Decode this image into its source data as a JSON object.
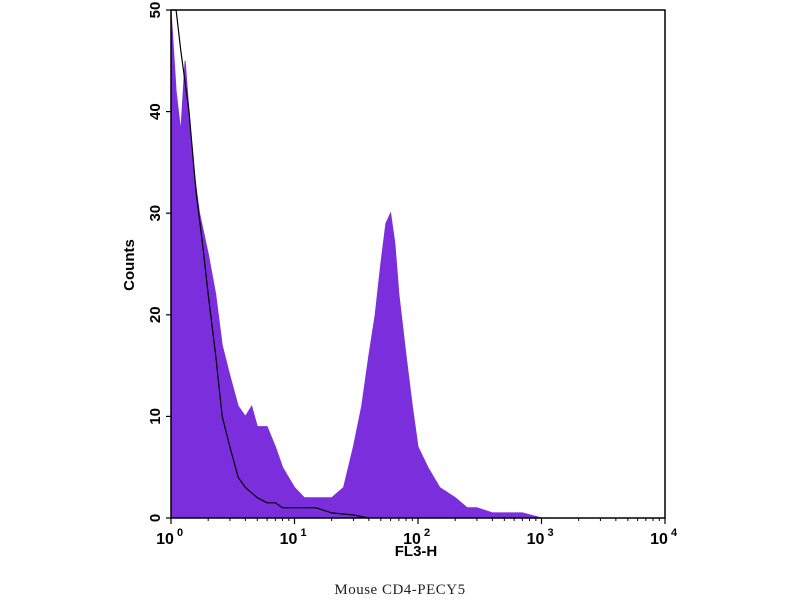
{
  "caption": "Mouse  CD4-PECY5",
  "colors": {
    "fill": "#7b2fdc",
    "outline": "#000000",
    "frame": "#000000"
  },
  "chart_data": {
    "type": "area",
    "title": "",
    "xlabel": "FL3-H",
    "ylabel": "Counts",
    "xscale": "log",
    "xlim": [
      1,
      10000
    ],
    "ylim": [
      0,
      50
    ],
    "grid": false,
    "x_ticks": [
      {
        "value": 1,
        "base": "10",
        "exp": "0"
      },
      {
        "value": 10,
        "base": "10",
        "exp": "1"
      },
      {
        "value": 100,
        "base": "10",
        "exp": "2"
      },
      {
        "value": 1000,
        "base": "10",
        "exp": "3"
      },
      {
        "value": 10000,
        "base": "10",
        "exp": "4"
      }
    ],
    "y_ticks": [
      {
        "value": 0,
        "label": "0"
      },
      {
        "value": 10,
        "label": "10"
      },
      {
        "value": 20,
        "label": "20"
      },
      {
        "value": 30,
        "label": "30"
      },
      {
        "value": 40,
        "label": "40"
      },
      {
        "value": 50,
        "label": "50"
      }
    ],
    "series": [
      {
        "style": "filled",
        "x": [
          1.0,
          1.1,
          1.2,
          1.3,
          1.4,
          1.5,
          1.7,
          2.0,
          2.3,
          2.6,
          3.0,
          3.5,
          4.0,
          4.5,
          5.0,
          6.0,
          7.0,
          8.0,
          10,
          12,
          15,
          20,
          25,
          30,
          35,
          40,
          45,
          50,
          55,
          60,
          65,
          70,
          80,
          90,
          100,
          120,
          150,
          200,
          250,
          300,
          400,
          500,
          700,
          1000
        ],
        "y": [
          50,
          42,
          38,
          45,
          40,
          35,
          30,
          26,
          22,
          17,
          14,
          11,
          10,
          11,
          9,
          9,
          7,
          5,
          3,
          2,
          2,
          2,
          3,
          7,
          11,
          16,
          20,
          25,
          29,
          30,
          27,
          22,
          16,
          11,
          7,
          5,
          3,
          2,
          1,
          1,
          0.5,
          0.5,
          0.5,
          0
        ]
      },
      {
        "style": "outline",
        "x": [
          1.0,
          1.1,
          1.2,
          1.4,
          1.6,
          1.8,
          2.0,
          2.3,
          2.6,
          3.0,
          3.5,
          4.0,
          5.0,
          6.0,
          7.0,
          8.0,
          10,
          12,
          15,
          20,
          30,
          40
        ],
        "y": [
          50,
          50,
          46,
          40,
          32,
          27,
          22,
          16,
          10,
          7,
          4,
          3,
          2,
          1.5,
          1.5,
          1,
          1,
          1,
          1,
          0.5,
          0.3,
          0
        ]
      }
    ]
  }
}
